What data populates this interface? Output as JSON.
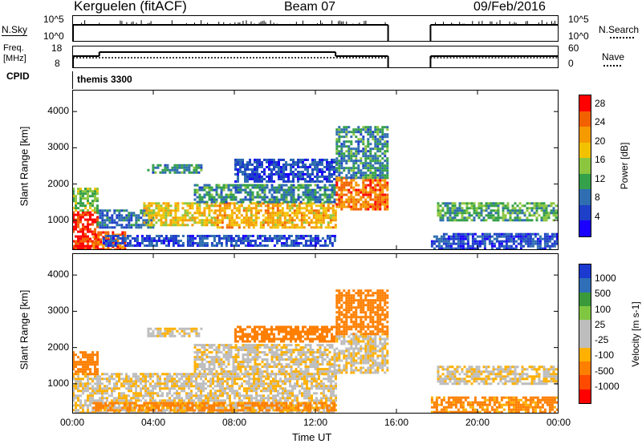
{
  "header": {
    "radar": "Kerguelen (fitACF)",
    "beam": "Beam 07",
    "date": "09/Feb/2016"
  },
  "noise_panel": {
    "left_label": "N.Sky",
    "left_ticks": [
      "10^5",
      "10^0"
    ],
    "right_label": "N.Search",
    "right_ticks": [
      "10^5",
      "10^0"
    ]
  },
  "freq_panel": {
    "left_label_1": "Freq.",
    "left_label_2": "[MHz]",
    "left_ticks": [
      "18",
      "8"
    ],
    "right_label": "Nave",
    "right_ticks": [
      "60",
      "0"
    ]
  },
  "cpid_panel": {
    "label": "CPID",
    "program": "themis 3300"
  },
  "colors": {
    "power": [
      "#1a00ff",
      "#1e3fc8",
      "#2f6eb0",
      "#35a04a",
      "#8cc63f",
      "#f2c200",
      "#f59a00",
      "#f26100",
      "#ff0000"
    ],
    "velocity": [
      "#ff0000",
      "#ff4a00",
      "#ff7f00",
      "#ffb000",
      "#bdbdbd",
      "#bdbdbd",
      "#7fc740",
      "#3a9a3a",
      "#2e6fb7",
      "#1a3ad0"
    ],
    "velocity_ground": "#bdbdbd"
  },
  "chart_data": [
    {
      "type": "heatmap",
      "title": "Power",
      "ylabel": "Slant Range [km]",
      "xlabel": "Time UT",
      "x_ticks": [
        "00:00",
        "04:00",
        "08:00",
        "12:00",
        "16:00",
        "20:00",
        "00:00"
      ],
      "y_ticks": [
        "1000",
        "2000",
        "3000",
        "4000"
      ],
      "xlim_hours": [
        0,
        24
      ],
      "ylim_km": [
        180,
        4600
      ],
      "colorbar": {
        "label": "Power [dB]",
        "ticks": [
          "4",
          "8",
          "12",
          "16",
          "20",
          "24",
          "28"
        ],
        "range": [
          0,
          30
        ]
      },
      "data_gap_hours": [
        15.6,
        17.7
      ],
      "regions": [
        {
          "t0": 0.0,
          "t1": 1.3,
          "r0": 200,
          "r1": 1250,
          "power": 28
        },
        {
          "t0": 0.0,
          "t1": 1.3,
          "r0": 1250,
          "r1": 1900,
          "power": 14
        },
        {
          "t0": 1.0,
          "t1": 2.6,
          "r0": 200,
          "r1": 700,
          "power": 24
        },
        {
          "t0": 1.2,
          "t1": 4.0,
          "r0": 800,
          "r1": 1300,
          "power": 8
        },
        {
          "t0": 1.5,
          "t1": 13.0,
          "r0": 300,
          "r1": 600,
          "power": 6
        },
        {
          "t0": 3.5,
          "t1": 7.0,
          "r0": 900,
          "r1": 1500,
          "power": 18
        },
        {
          "t0": 7.0,
          "t1": 13.0,
          "r0": 800,
          "r1": 1500,
          "power": 20
        },
        {
          "t0": 6.0,
          "t1": 13.0,
          "r0": 1500,
          "r1": 2000,
          "power": 10
        },
        {
          "t0": 8.0,
          "t1": 13.0,
          "r0": 2100,
          "r1": 2700,
          "power": 6
        },
        {
          "t0": 3.7,
          "t1": 6.4,
          "r0": 2350,
          "r1": 2550,
          "power": 10
        },
        {
          "t0": 13.0,
          "t1": 15.6,
          "r0": 1300,
          "r1": 2200,
          "power": 24
        },
        {
          "t0": 13.0,
          "t1": 15.6,
          "r0": 2200,
          "r1": 3600,
          "power": 10
        },
        {
          "t0": 17.7,
          "t1": 24.0,
          "r0": 250,
          "r1": 650,
          "power": 6
        },
        {
          "t0": 18.0,
          "t1": 24.0,
          "r0": 1000,
          "r1": 1500,
          "power": 12
        }
      ]
    },
    {
      "type": "heatmap",
      "title": "Velocity",
      "ylabel": "Slant Range [km]",
      "xlabel": "Time UT",
      "x_ticks": [
        "00:00",
        "04:00",
        "08:00",
        "12:00",
        "16:00",
        "20:00",
        "00:00"
      ],
      "y_ticks": [
        "1000",
        "2000",
        "3000",
        "4000"
      ],
      "xlim_hours": [
        0,
        24
      ],
      "ylim_km": [
        180,
        4600
      ],
      "colorbar": {
        "label": "Velocity [m s-1]",
        "ticks": [
          "1000",
          "500",
          "100",
          "25",
          "-25",
          "-100",
          "-500",
          "-1000"
        ]
      },
      "data_gap_hours": [
        15.6,
        17.7
      ],
      "regions": [
        {
          "t0": 0.0,
          "t1": 13.0,
          "r0": 200,
          "r1": 1300,
          "velocity": 0
        },
        {
          "t0": 0.0,
          "t1": 1.3,
          "r0": 1300,
          "r1": 1900,
          "velocity": -300
        },
        {
          "t0": 1.0,
          "t1": 13.0,
          "r0": 250,
          "r1": 500,
          "velocity": -150
        },
        {
          "t0": 6.0,
          "t1": 13.0,
          "r0": 1300,
          "r1": 2100,
          "velocity": 0
        },
        {
          "t0": 3.7,
          "t1": 6.4,
          "r0": 2350,
          "r1": 2550,
          "velocity": 0
        },
        {
          "t0": 8.0,
          "t1": 13.0,
          "r0": 2200,
          "r1": 2600,
          "velocity": -300
        },
        {
          "t0": 13.0,
          "t1": 15.6,
          "r0": 1300,
          "r1": 2400,
          "velocity": 0
        },
        {
          "t0": 13.0,
          "t1": 15.6,
          "r0": 2400,
          "r1": 3600,
          "velocity": -300
        },
        {
          "t0": 17.7,
          "t1": 24.0,
          "r0": 250,
          "r1": 650,
          "velocity": -150
        },
        {
          "t0": 18.0,
          "t1": 24.0,
          "r0": 1000,
          "r1": 1500,
          "velocity": 0
        }
      ]
    }
  ]
}
